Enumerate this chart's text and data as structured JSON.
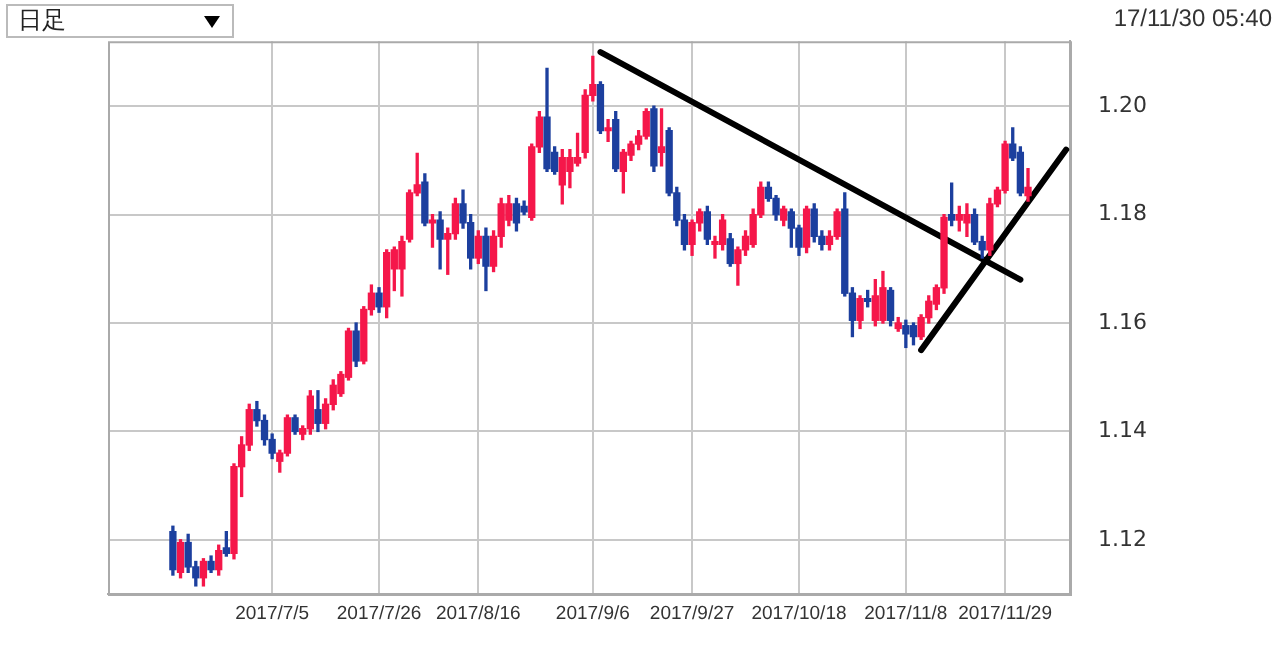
{
  "chart_data": {
    "type": "candlestick",
    "annotations": [
      "日足",
      "17/11/30 05:40"
    ],
    "categories": [
      null,
      null,
      null,
      null,
      null,
      null,
      null,
      null,
      null,
      null,
      null,
      null,
      null,
      null,
      null,
      null,
      null,
      null,
      null,
      null,
      null,
      "2017/7/5",
      null,
      null,
      null,
      null,
      null,
      null,
      null,
      null,
      null,
      null,
      null,
      null,
      null,
      "2017/7/26",
      null,
      null,
      null,
      null,
      null,
      null,
      null,
      null,
      null,
      null,
      null,
      null,
      "2017/8/16",
      null,
      null,
      null,
      null,
      null,
      null,
      null,
      null,
      null,
      null,
      null,
      null,
      null,
      null,
      "2017/9/6",
      null,
      null,
      null,
      null,
      null,
      null,
      null,
      null,
      null,
      null,
      null,
      null,
      "2017/9/27",
      null,
      null,
      null,
      null,
      null,
      null,
      null,
      null,
      null,
      null,
      null,
      null,
      null,
      "2017/10/18",
      null,
      null,
      null,
      null,
      null,
      null,
      null,
      null,
      null,
      null,
      null,
      null,
      null,
      "2017/11/8",
      null,
      null,
      null,
      null,
      null,
      null,
      null,
      null,
      null,
      null,
      null,
      null,
      "2017/11/29",
      null,
      null,
      null,
      null,
      null,
      null,
      null,
      null
    ],
    "ylim": [
      1.11,
      1.212
    ],
    "yticks": [
      1.12,
      1.14,
      1.16,
      1.18,
      {
        "value": 1.2,
        "label": "1.20"
      }
    ],
    "grid": true,
    "series": [
      {
        "type": "candlestick",
        "ohlc": [
          null,
          null,
          null,
          null,
          null,
          null,
          null,
          null,
          [
            1.1215,
            1.1225,
            1.1135,
            1.1145
          ],
          [
            1.114,
            1.12,
            1.113,
            1.1195
          ],
          [
            1.1195,
            1.121,
            1.114,
            1.115
          ],
          [
            1.115,
            1.116,
            1.1115,
            1.113
          ],
          [
            1.113,
            1.1165,
            1.1115,
            1.116
          ],
          [
            1.116,
            1.117,
            1.114,
            1.1145
          ],
          [
            1.1145,
            1.119,
            1.1135,
            1.118
          ],
          [
            1.1185,
            1.1215,
            1.117,
            1.1175
          ],
          [
            1.1175,
            1.134,
            1.1165,
            1.1335
          ],
          [
            1.1335,
            1.139,
            1.128,
            1.1375
          ],
          [
            1.1375,
            1.145,
            1.1365,
            1.144
          ],
          [
            1.144,
            1.1455,
            1.141,
            1.142
          ],
          [
            1.142,
            1.143,
            1.1375,
            1.1385
          ],
          [
            1.1385,
            1.1395,
            1.135,
            1.136
          ],
          [
            1.1345,
            1.1365,
            1.1325,
            1.136
          ],
          [
            1.136,
            1.143,
            1.1355,
            1.1425
          ],
          [
            1.1425,
            1.143,
            1.1395,
            1.14
          ],
          [
            1.1395,
            1.141,
            1.1385,
            1.1405
          ],
          [
            1.1405,
            1.1475,
            1.1395,
            1.1465
          ],
          [
            1.144,
            1.1475,
            1.14,
            1.1415
          ],
          [
            1.1415,
            1.146,
            1.1405,
            1.145
          ],
          [
            1.145,
            1.1495,
            1.144,
            1.1485
          ],
          [
            1.147,
            1.151,
            1.1465,
            1.1505
          ],
          [
            1.15,
            1.159,
            1.1495,
            1.1585
          ],
          [
            1.1585,
            1.16,
            1.152,
            1.153
          ],
          [
            1.153,
            1.163,
            1.1525,
            1.1625
          ],
          [
            1.1625,
            1.167,
            1.1615,
            1.1655
          ],
          [
            1.1655,
            1.1665,
            1.162,
            1.163
          ],
          [
            1.163,
            1.1735,
            1.161,
            1.173
          ],
          [
            1.17,
            1.174,
            1.166,
            1.1735
          ],
          [
            1.17,
            1.176,
            1.165,
            1.175
          ],
          [
            1.1755,
            1.1845,
            1.175,
            1.184
          ],
          [
            1.184,
            1.1913,
            1.1835,
            1.1855
          ],
          [
            1.186,
            1.1875,
            1.178,
            1.1785
          ],
          [
            1.1785,
            1.18,
            1.174,
            1.179
          ],
          [
            1.179,
            1.1805,
            1.17,
            1.1755
          ],
          [
            1.1755,
            1.1775,
            1.169,
            1.1765
          ],
          [
            1.1765,
            1.183,
            1.1755,
            1.182
          ],
          [
            1.182,
            1.1845,
            1.1775,
            1.1785
          ],
          [
            1.1785,
            1.18,
            1.17,
            1.172
          ],
          [
            1.172,
            1.177,
            1.171,
            1.176
          ],
          [
            1.176,
            1.1775,
            1.166,
            1.1705
          ],
          [
            1.1705,
            1.177,
            1.1695,
            1.176
          ],
          [
            1.176,
            1.183,
            1.174,
            1.182
          ],
          [
            1.179,
            1.1835,
            1.178,
            1.182
          ],
          [
            1.182,
            1.183,
            1.177,
            1.1785
          ],
          [
            1.1815,
            1.1825,
            1.18,
            1.1805
          ],
          [
            1.1795,
            1.193,
            1.179,
            1.1925
          ],
          [
            1.1925,
            1.199,
            1.1915,
            1.198
          ],
          [
            1.198,
            1.207,
            1.188,
            1.1885
          ],
          [
            1.1915,
            1.1925,
            1.1875,
            1.188
          ],
          [
            1.1855,
            1.192,
            1.182,
            1.1905
          ],
          [
            1.188,
            1.192,
            1.185,
            1.1905
          ],
          [
            1.1895,
            1.195,
            1.189,
            1.1905
          ],
          [
            1.1915,
            1.203,
            1.1905,
            1.202
          ],
          [
            1.202,
            1.2092,
            1.201,
            1.204
          ],
          [
            1.204,
            1.2045,
            1.195,
            1.1955
          ],
          [
            1.1955,
            1.1975,
            1.1935,
            1.196
          ],
          [
            1.1975,
            1.199,
            1.188,
            1.1885
          ],
          [
            1.188,
            1.192,
            1.184,
            1.1915
          ],
          [
            1.191,
            1.1935,
            1.19,
            1.193
          ],
          [
            1.193,
            1.1955,
            1.192,
            1.1945
          ],
          [
            1.1945,
            1.1995,
            1.194,
            1.199
          ],
          [
            1.1995,
            1.2,
            1.188,
            1.189
          ],
          [
            1.1915,
            1.1995,
            1.189,
            1.1925
          ],
          [
            1.1955,
            1.196,
            1.1835,
            1.184
          ],
          [
            1.184,
            1.185,
            1.178,
            1.179
          ],
          [
            1.179,
            1.18,
            1.1735,
            1.1745
          ],
          [
            1.1745,
            1.179,
            1.1725,
            1.1785
          ],
          [
            1.1785,
            1.181,
            1.177,
            1.1805
          ],
          [
            1.1805,
            1.1815,
            1.1745,
            1.1755
          ],
          [
            1.1745,
            1.176,
            1.172,
            1.175
          ],
          [
            1.1745,
            1.18,
            1.1735,
            1.179
          ],
          [
            1.1755,
            1.1765,
            1.1705,
            1.171
          ],
          [
            1.171,
            1.174,
            1.167,
            1.1735
          ],
          [
            1.1735,
            1.177,
            1.1725,
            1.176
          ],
          [
            1.1745,
            1.181,
            1.174,
            1.18
          ],
          [
            1.18,
            1.186,
            1.1795,
            1.185
          ],
          [
            1.185,
            1.186,
            1.1825,
            1.183
          ],
          [
            1.183,
            1.1835,
            1.179,
            1.18
          ],
          [
            1.179,
            1.1815,
            1.178,
            1.181
          ],
          [
            1.1805,
            1.181,
            1.174,
            1.1775
          ],
          [
            1.1775,
            1.178,
            1.1725,
            1.174
          ],
          [
            1.174,
            1.1815,
            1.173,
            1.181
          ],
          [
            1.181,
            1.182,
            1.175,
            1.176
          ],
          [
            1.176,
            1.177,
            1.1735,
            1.1745
          ],
          [
            1.1745,
            1.177,
            1.1735,
            1.176
          ],
          [
            1.176,
            1.181,
            1.1755,
            1.1805
          ],
          [
            1.181,
            1.184,
            1.165,
            1.1655
          ],
          [
            1.1655,
            1.1665,
            1.1575,
            1.1605
          ],
          [
            1.1605,
            1.165,
            1.159,
            1.1645
          ],
          [
            1.1645,
            1.166,
            1.163,
            1.164
          ],
          [
            1.1605,
            1.168,
            1.1595,
            1.165
          ],
          [
            1.1605,
            1.1695,
            1.16,
            1.1665
          ],
          [
            1.166,
            1.1665,
            1.1595,
            1.1605
          ],
          [
            1.159,
            1.161,
            1.1585,
            1.16
          ],
          [
            1.1595,
            1.1605,
            1.1555,
            1.158
          ],
          [
            1.1595,
            1.16,
            1.156,
            1.1575
          ],
          [
            1.1575,
            1.1615,
            1.157,
            1.161
          ],
          [
            1.161,
            1.165,
            1.16,
            1.164
          ],
          [
            1.1635,
            1.167,
            1.1625,
            1.1665
          ],
          [
            1.1665,
            1.18,
            1.1655,
            1.1795
          ],
          [
            1.18,
            1.1858,
            1.178,
            1.179
          ],
          [
            1.179,
            1.1815,
            1.177,
            1.18
          ],
          [
            1.1785,
            1.182,
            1.176,
            1.18
          ],
          [
            1.18,
            1.181,
            1.1745,
            1.175
          ],
          [
            1.175,
            1.176,
            1.172,
            1.1735
          ],
          [
            1.1735,
            1.183,
            1.1725,
            1.182
          ],
          [
            1.182,
            1.185,
            1.1815,
            1.1845
          ],
          [
            1.1845,
            1.1935,
            1.184,
            1.193
          ],
          [
            1.193,
            1.196,
            1.19,
            1.1905
          ],
          [
            1.1915,
            1.1925,
            1.1835,
            1.184
          ],
          [
            1.1835,
            1.1885,
            1.1825,
            1.185
          ],
          null,
          null,
          null,
          null,
          null
        ],
        "colors": [
          null,
          null,
          null,
          null,
          null,
          null,
          null,
          null,
          "#1c3f9e",
          "#f5174a",
          "#1c3f9e",
          "#1c3f9e",
          "#f5174a",
          "#1c3f9e",
          "#f5174a",
          "#1c3f9e",
          "#f5174a",
          "#f5174a",
          "#f5174a",
          "#1c3f9e",
          "#1c3f9e",
          "#1c3f9e",
          "#f5174a",
          "#f5174a",
          "#1c3f9e",
          "#f5174a",
          "#f5174a",
          "#1c3f9e",
          "#f5174a",
          "#f5174a",
          "#f5174a",
          "#f5174a",
          "#1c3f9e",
          "#f5174a",
          "#f5174a",
          "#1c3f9e",
          "#f5174a",
          "#f5174a",
          "#f5174a",
          "#f5174a",
          "#f5174a",
          "#1c3f9e",
          "#f5174a",
          "#1c3f9e",
          "#f5174a",
          "#f5174a",
          "#1c3f9e",
          "#1c3f9e",
          "#f5174a",
          "#1c3f9e",
          "#f5174a",
          "#f5174a",
          "#f5174a",
          "#1c3f9e",
          "#1c3f9e",
          "#f5174a",
          "#f5174a",
          "#1c3f9e",
          "#1c3f9e",
          "#f5174a",
          "#f5174a",
          "#f5174a",
          "#f5174a",
          "#f5174a",
          "#1c3f9e",
          "#f5174a",
          "#1c3f9e",
          "#f5174a",
          "#f5174a",
          "#f5174a",
          "#f5174a",
          "#1c3f9e",
          "#f5174a",
          "#1c3f9e",
          "#1c3f9e",
          "#1c3f9e",
          "#f5174a",
          "#f5174a",
          "#1c3f9e",
          "#f5174a",
          "#f5174a",
          "#1c3f9e",
          "#f5174a",
          "#f5174a",
          "#f5174a",
          "#f5174a",
          "#1c3f9e",
          "#1c3f9e",
          "#f5174a",
          "#1c3f9e",
          "#1c3f9e",
          "#f5174a",
          "#1c3f9e",
          "#1c3f9e",
          "#f5174a",
          "#f5174a",
          "#1c3f9e",
          "#1c3f9e",
          "#f5174a",
          "#1c3f9e",
          "#f5174a",
          "#f5174a",
          "#1c3f9e",
          "#f5174a",
          "#1c3f9e",
          "#1c3f9e",
          "#f5174a",
          "#f5174a",
          "#f5174a",
          "#f5174a",
          "#1c3f9e",
          "#f5174a",
          "#f5174a",
          "#1c3f9e",
          "#1c3f9e",
          "#f5174a",
          "#f5174a",
          "#f5174a",
          "#1c3f9e",
          "#1c3f9e",
          "#f5174a",
          null,
          null,
          null,
          null,
          null
        ]
      },
      {
        "type": "line",
        "color": "#000000",
        "values": [
          null,
          null,
          null,
          null,
          null,
          null,
          null,
          null,
          null,
          null,
          null,
          null,
          null,
          null,
          null,
          null,
          null,
          null,
          null,
          null,
          null,
          null,
          null,
          null,
          null,
          null,
          null,
          null,
          null,
          null,
          null,
          null,
          null,
          null,
          null,
          null,
          null,
          null,
          null,
          null,
          null,
          null,
          null,
          null,
          null,
          null,
          null,
          null,
          null,
          null,
          null,
          null,
          null,
          null,
          null,
          null,
          null,
          null,
          null,
          null,
          null,
          null,
          null,
          null,
          1.21,
          null,
          null,
          null,
          null,
          null,
          null,
          null,
          null,
          null,
          null,
          null,
          null,
          null,
          null,
          null,
          null,
          null,
          null,
          null,
          null,
          null,
          null,
          null,
          null,
          null,
          null,
          null,
          null,
          null,
          null,
          null,
          null,
          null,
          null,
          null,
          null,
          null,
          null,
          null,
          null,
          null,
          null,
          null,
          null,
          null,
          null,
          null,
          null,
          null,
          null,
          null,
          null,
          null,
          null,
          1.168,
          null,
          null,
          null,
          null,
          null,
          null
        ]
      },
      {
        "type": "line",
        "color": "#000000",
        "values": [
          null,
          null,
          null,
          null,
          null,
          null,
          null,
          null,
          null,
          null,
          null,
          null,
          null,
          null,
          null,
          null,
          null,
          null,
          null,
          null,
          null,
          null,
          null,
          null,
          null,
          null,
          null,
          null,
          null,
          null,
          null,
          null,
          null,
          null,
          null,
          null,
          null,
          null,
          null,
          null,
          null,
          null,
          null,
          null,
          null,
          null,
          null,
          null,
          null,
          null,
          null,
          null,
          null,
          null,
          null,
          null,
          null,
          null,
          null,
          null,
          null,
          null,
          null,
          null,
          null,
          null,
          null,
          null,
          null,
          null,
          null,
          null,
          null,
          null,
          null,
          null,
          null,
          null,
          null,
          null,
          null,
          null,
          null,
          null,
          null,
          null,
          null,
          null,
          null,
          null,
          null,
          null,
          null,
          null,
          null,
          null,
          null,
          null,
          null,
          null,
          null,
          null,
          null,
          null,
          null,
          null,
          1.155,
          null,
          null,
          null,
          null,
          null,
          null,
          null,
          null,
          null,
          null,
          null,
          null,
          null,
          null,
          null,
          null,
          null,
          null,
          1.192
        ]
      }
    ]
  }
}
